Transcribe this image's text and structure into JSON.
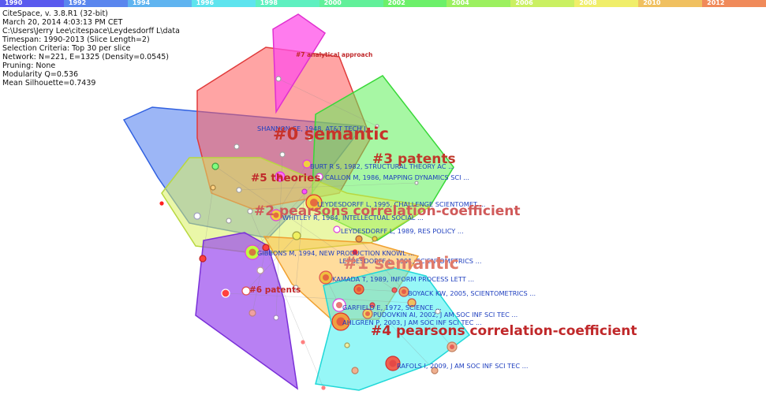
{
  "timeline": {
    "years": [
      "1990",
      "1992",
      "1994",
      "1996",
      "1998",
      "2000",
      "2002",
      "2004",
      "2006",
      "2008",
      "2010",
      "2012"
    ],
    "colors": [
      "#5a5aee",
      "#5a86ee",
      "#60b4f0",
      "#5ee4ee",
      "#5ef0c0",
      "#62f09a",
      "#6cf06a",
      "#9cf060",
      "#caf062",
      "#f0ee6a",
      "#f0c060",
      "#f08a5a"
    ]
  },
  "info": {
    "lines": [
      "CiteSpace, v. 3.8.R1 (32-bit)",
      "March 20, 2014 4:03:13 PM CET",
      "C:\\Users\\Jerry Lee\\citespace\\Leydesdorff L\\data",
      "Timespan: 1990-2013 (Slice Length=2)",
      "Selection Criteria: Top 30 per slice",
      "Network: N=221, E=1325 (Density=0.0545)",
      "Pruning: None",
      "Modularity Q=0.536",
      "Mean Silhouette=0.7439"
    ]
  },
  "clusters": [
    {
      "label": "#0  semantic",
      "color": "#c8322a",
      "fill": "#ff6b6b"
    },
    {
      "label": "#1  semantic",
      "color": "#e07a6a",
      "fill": "#ffc04a"
    },
    {
      "label": "#2  pearsons correlation-coefficient",
      "color": "#d05a5a",
      "fill": "#d8f060"
    },
    {
      "label": "#3  patents",
      "color": "#c0392b",
      "fill": "#5ef05a"
    },
    {
      "label": "#4  pearsons correlation-coefficient",
      "color": "#c0282a",
      "fill": "#40f0f0"
    },
    {
      "label": "#5  theories",
      "color": "#c0282a",
      "fill": "#4a7aee"
    },
    {
      "label": "#6  patents",
      "color": "#c0282a",
      "fill": "#9a4aee"
    },
    {
      "label": "#7 analytical approach",
      "color": "#c0282a",
      "fill": "#ff50e8"
    }
  ],
  "references": [
    "SHANNON CE, 1948, AT&T TECH J ...",
    "BURT R S, 1982, STRUCTURAL THEORY AC ...",
    "CALLON M, 1986, MAPPING DYNAMICS SCI ...",
    "LEYDESDORFF L, 1995, CHALLENGE SCIENTOMET ...",
    "WHITLEY R, 1984, INTELLECTUAL SOCIAL ...",
    "LEYDESDORFF L, 1989, RES POLICY ...",
    "GIBBONS M, 1994, NEW PRODUCTION KNOWL ...",
    "LEYDESDORFF L, 1991, SCIENTOMETRICS ...",
    "KAMADA T, 1989, INFORM PROCESS LETT ...",
    "BOYACK KW, 2005, SCIENTOMETRICS ...",
    "GARFIELD E, 1972, SCIENCE ...",
    "PUDOVKIN AI, 2002, J AM SOC INF SCI TEC ...",
    "AHLGREN P, 2003, J AM SOC INF SCI TEC ...",
    "RAFOLS I, 2009, J AM SOC INF SCI TEC ..."
  ]
}
